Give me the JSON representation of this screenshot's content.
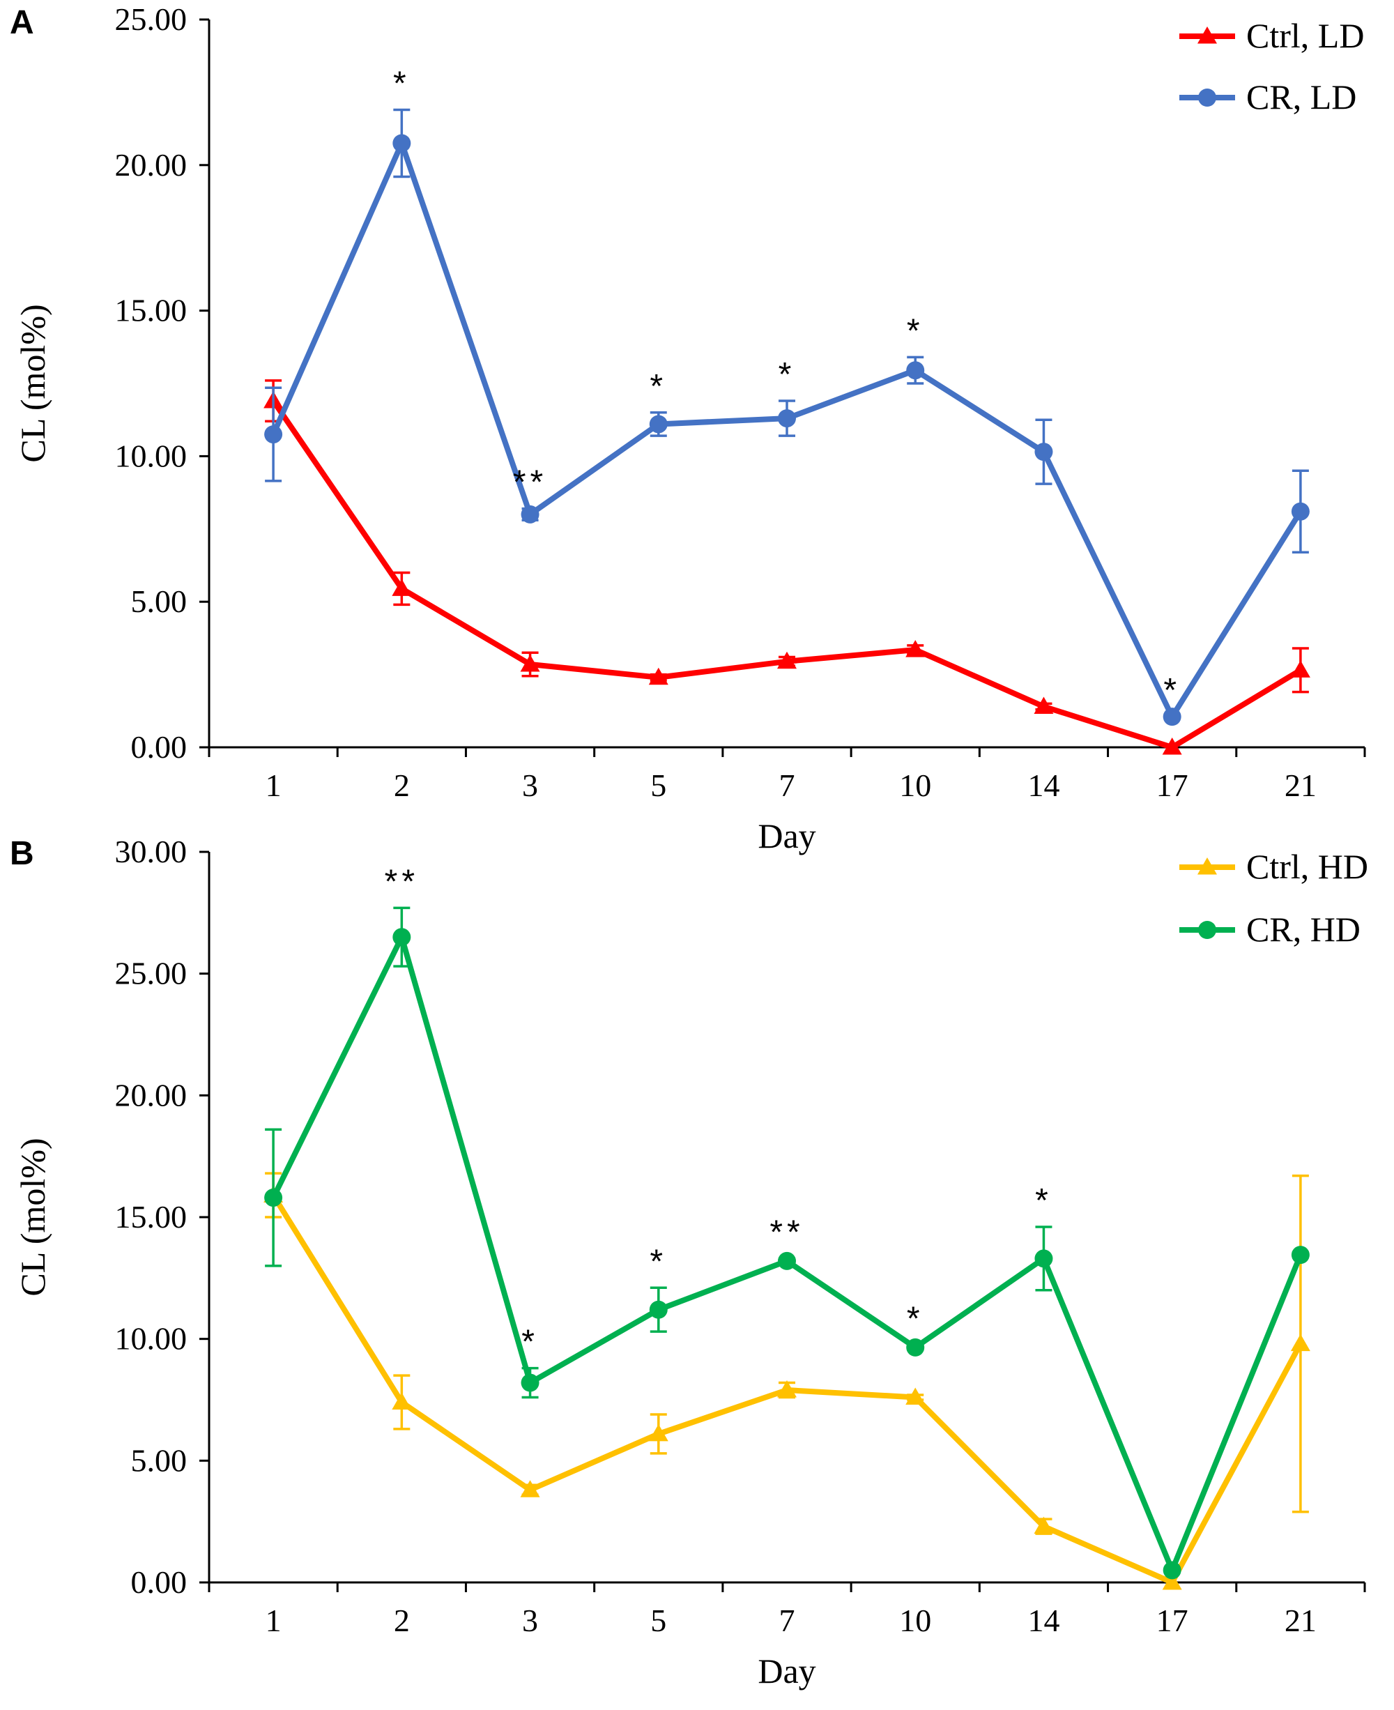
{
  "chart_data": [
    {
      "type": "line",
      "panel_label": "A",
      "xlabel": "Day",
      "ylabel": "CL (mol%)",
      "categories": [
        "1",
        "2",
        "3",
        "5",
        "7",
        "10",
        "14",
        "17",
        "21"
      ],
      "ylim": [
        0,
        25
      ],
      "yticks": [
        "0.00",
        "5.00",
        "10.00",
        "15.00",
        "20.00",
        "25.00"
      ],
      "grid": false,
      "legend_position": "top-right",
      "series": [
        {
          "name": "Ctrl, LD",
          "color": "#ff0000",
          "marker": "triangle",
          "values": [
            11.9,
            5.45,
            2.85,
            2.4,
            2.95,
            3.35,
            1.4,
            0.0,
            2.65
          ],
          "errors": [
            0.7,
            0.55,
            0.4,
            0.1,
            0.15,
            0.15,
            0.1,
            0.0,
            0.75
          ]
        },
        {
          "name": "CR, LD",
          "color": "#4472c4",
          "marker": "circle",
          "values": [
            10.75,
            20.75,
            8.0,
            11.1,
            11.3,
            12.95,
            10.15,
            1.05,
            8.1
          ],
          "errors": [
            1.6,
            1.15,
            0.2,
            0.4,
            0.6,
            0.45,
            1.1,
            0.0,
            1.4
          ]
        }
      ],
      "annotations": [
        {
          "x": "2",
          "text": "*"
        },
        {
          "x": "3",
          "text": "**"
        },
        {
          "x": "5",
          "text": "*"
        },
        {
          "x": "7",
          "text": "*"
        },
        {
          "x": "10",
          "text": "*"
        },
        {
          "x": "17",
          "text": "*"
        }
      ]
    },
    {
      "type": "line",
      "panel_label": "B",
      "xlabel": "Day",
      "ylabel": "CL (mol%)",
      "categories": [
        "1",
        "2",
        "3",
        "5",
        "7",
        "10",
        "14",
        "17",
        "21"
      ],
      "ylim": [
        0,
        30
      ],
      "yticks": [
        "0.00",
        "5.00",
        "10.00",
        "15.00",
        "20.00",
        "25.00",
        "30.00"
      ],
      "grid": false,
      "legend_position": "top-right",
      "series": [
        {
          "name": "Ctrl, HD",
          "color": "#ffc000",
          "marker": "triangle",
          "values": [
            15.9,
            7.4,
            3.8,
            6.1,
            7.9,
            7.6,
            2.3,
            0.0,
            9.8
          ],
          "errors": [
            0.9,
            1.1,
            0.2,
            0.8,
            0.3,
            0.1,
            0.3,
            0.0,
            6.9
          ]
        },
        {
          "name": "CR, HD",
          "color": "#00b050",
          "marker": "circle",
          "values": [
            15.8,
            26.5,
            8.2,
            11.2,
            13.2,
            9.65,
            13.3,
            0.5,
            13.45
          ],
          "errors": [
            2.8,
            1.2,
            0.6,
            0.9,
            0.1,
            0.1,
            1.3,
            0.0,
            0.1
          ]
        }
      ],
      "annotations": [
        {
          "x": "2",
          "text": "**"
        },
        {
          "x": "3",
          "text": "*"
        },
        {
          "x": "5",
          "text": "*"
        },
        {
          "x": "7",
          "text": "**"
        },
        {
          "x": "10",
          "text": "*"
        },
        {
          "x": "14",
          "text": "*"
        }
      ]
    }
  ]
}
